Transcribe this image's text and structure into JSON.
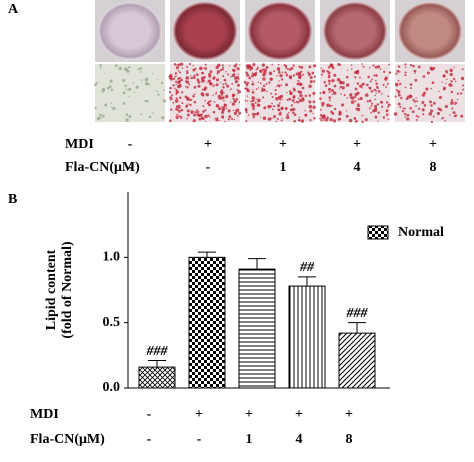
{
  "panel_a": {
    "label": "A",
    "rows": [
      {
        "label": "MDI",
        "cells": [
          "-",
          "+",
          "+",
          "+",
          "+"
        ]
      },
      {
        "label": "Fla-CN(μM)",
        "cells": [
          "-",
          "-",
          "1",
          "4",
          "8"
        ]
      }
    ]
  },
  "chart_data": {
    "type": "bar",
    "panel_label": "B",
    "ylabel": [
      "Lipid content",
      "(fold of Normal)"
    ],
    "categories": [
      null,
      null,
      null,
      null,
      null
    ],
    "series": [
      {
        "name": "Normal",
        "color": "#000000",
        "values": [
          0.16,
          1.0,
          0.91,
          0.78,
          0.42
        ],
        "errors": [
          0.05,
          0.04,
          0.08,
          0.07,
          0.08
        ],
        "annotations": [
          "###",
          null,
          null,
          "##",
          "###"
        ]
      }
    ],
    "patterns": [
      "crosshatch",
      "checker",
      "horizontal",
      "vertical",
      "diagonal"
    ],
    "ylim": [
      0,
      1.5
    ],
    "yticks": [
      {
        "value": 0,
        "label": "0.0"
      },
      {
        "value": 0.5,
        "label": "0.5"
      },
      {
        "value": 1,
        "label": "1.0"
      }
    ],
    "legend": "top-right",
    "treatments": [
      {
        "label": "MDI",
        "cells": [
          "-",
          "+",
          "+",
          "+",
          "+"
        ]
      },
      {
        "label": "Fla-CN(μM)",
        "cells": [
          "-",
          "-",
          "1",
          "4",
          "8"
        ]
      }
    ]
  }
}
